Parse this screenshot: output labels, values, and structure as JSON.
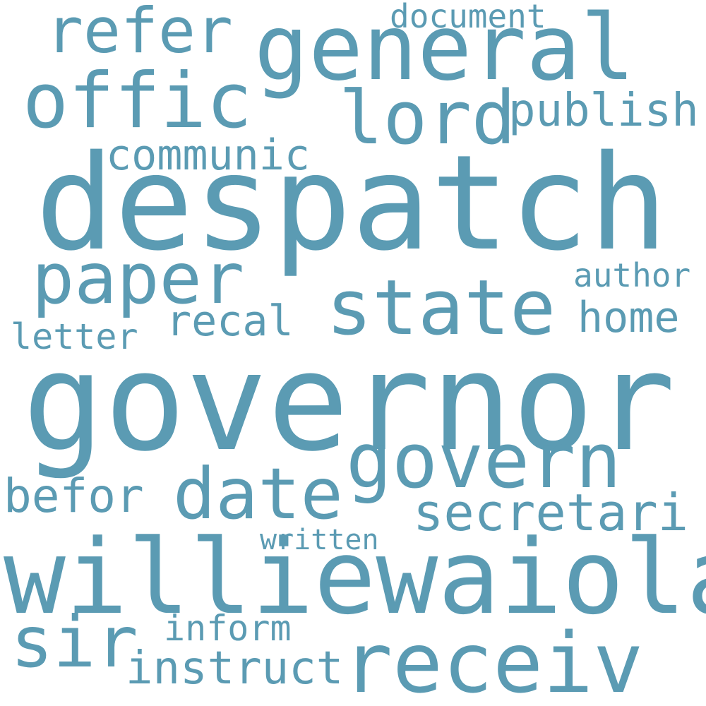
{
  "word_color": "#5b9bb3",
  "background_color": "#ffffff",
  "words": [
    {
      "key": "governor",
      "text": "governor"
    },
    {
      "key": "despatch",
      "text": "despatch"
    },
    {
      "key": "williewaiola",
      "text": "williewaiola"
    },
    {
      "key": "receiv",
      "text": "receiv"
    },
    {
      "key": "general",
      "text": "general"
    },
    {
      "key": "state",
      "text": "state"
    },
    {
      "key": "govern",
      "text": "govern"
    },
    {
      "key": "offic",
      "text": "offic"
    },
    {
      "key": "paper",
      "text": "paper"
    },
    {
      "key": "lord",
      "text": "lord"
    },
    {
      "key": "date",
      "text": "date"
    },
    {
      "key": "sir",
      "text": "sir"
    },
    {
      "key": "refer",
      "text": "refer"
    },
    {
      "key": "secretari",
      "text": "secretari"
    },
    {
      "key": "publish",
      "text": "publish"
    },
    {
      "key": "communic",
      "text": "communic"
    },
    {
      "key": "instruct",
      "text": "instruct"
    },
    {
      "key": "befor",
      "text": "befor"
    },
    {
      "key": "home",
      "text": "home"
    },
    {
      "key": "recal",
      "text": "recal"
    },
    {
      "key": "inform",
      "text": "inform"
    },
    {
      "key": "document",
      "text": "document"
    },
    {
      "key": "letter",
      "text": "letter"
    },
    {
      "key": "author",
      "text": "author"
    },
    {
      "key": "written",
      "text": "written"
    }
  ]
}
